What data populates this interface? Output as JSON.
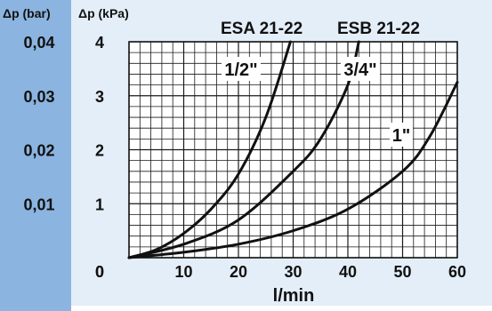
{
  "chart_data": {
    "type": "line",
    "title": "",
    "xlabel": "l/min",
    "ylabel": "Δp (kPa)",
    "ylabel_secondary": "Δp (bar)",
    "xlim": [
      0,
      60
    ],
    "ylim": [
      0,
      4
    ],
    "grid": true,
    "x_ticks": [
      "0",
      "10",
      "20",
      "30",
      "40",
      "50",
      "60"
    ],
    "y_ticks": [
      "0",
      "1",
      "2",
      "3",
      "4"
    ],
    "y2_ticks": [
      "0,01",
      "0,02",
      "0,03",
      "0,04"
    ],
    "headers": [
      "ESA 21-22",
      "ESB 21-22"
    ],
    "series": [
      {
        "name": "1/2\"",
        "points": [
          [
            0,
            0
          ],
          [
            5,
            0.15
          ],
          [
            10,
            0.45
          ],
          [
            15,
            0.9
          ],
          [
            20,
            1.55
          ],
          [
            25,
            2.6
          ],
          [
            29.5,
            4.0
          ]
        ]
      },
      {
        "name": "3/4\"",
        "points": [
          [
            0,
            0
          ],
          [
            10,
            0.25
          ],
          [
            20,
            0.7
          ],
          [
            30,
            1.6
          ],
          [
            35,
            2.2
          ],
          [
            40,
            3.2
          ],
          [
            42,
            4.0
          ]
        ]
      },
      {
        "name": "1\"",
        "points": [
          [
            0,
            0
          ],
          [
            10,
            0.1
          ],
          [
            20,
            0.25
          ],
          [
            30,
            0.5
          ],
          [
            40,
            0.9
          ],
          [
            50,
            1.6
          ],
          [
            55,
            2.25
          ],
          [
            60,
            3.25
          ]
        ]
      }
    ],
    "colors": {
      "band": "#8BB4E0",
      "plot_bg": "#E4EEF8",
      "grid": "#1a1a1a",
      "curve": "#111111"
    }
  }
}
